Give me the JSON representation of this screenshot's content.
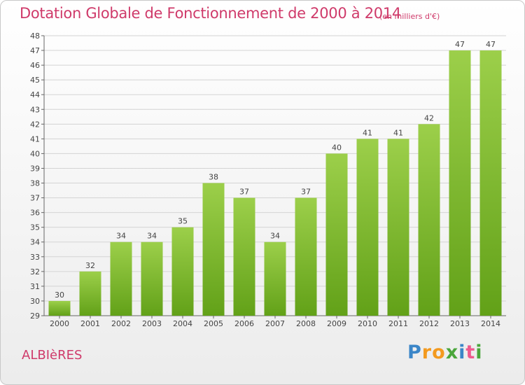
{
  "title": "Dotation Globale de Fonctionnement de 2000 à 2014",
  "subtitle": "(en milliers d'€)",
  "commune": "ALBIèRES",
  "brand": {
    "letters": [
      "P",
      "r",
      "o",
      "x",
      "i",
      "t",
      "i"
    ],
    "colors": [
      "#3b86c8",
      "#f39a1f",
      "#f39a1f",
      "#4aa63b",
      "#3b86c8",
      "#ef5a8e",
      "#4aa63b"
    ]
  },
  "colors": {
    "bar_top": "#9ccf4a",
    "bar_bottom": "#62a118",
    "title": "#cf3a6a",
    "grid": "#d4d4d4"
  },
  "chart_data": {
    "type": "bar",
    "title": "Dotation Globale de Fonctionnement de 2000 à 2014",
    "subtitle": "(en milliers d'€)",
    "xlabel": "",
    "ylabel": "",
    "categories": [
      "2000",
      "2001",
      "2002",
      "2003",
      "2004",
      "2005",
      "2006",
      "2007",
      "2008",
      "2009",
      "2010",
      "2011",
      "2012",
      "2013",
      "2014"
    ],
    "values": [
      30,
      32,
      34,
      34,
      35,
      38,
      37,
      34,
      37,
      40,
      41,
      41,
      42,
      47,
      47
    ],
    "ylim": [
      29,
      48
    ],
    "yticks": [
      29,
      30,
      31,
      32,
      33,
      34,
      35,
      36,
      37,
      38,
      39,
      40,
      41,
      42,
      43,
      44,
      45,
      46,
      47,
      48
    ],
    "grid": true
  }
}
